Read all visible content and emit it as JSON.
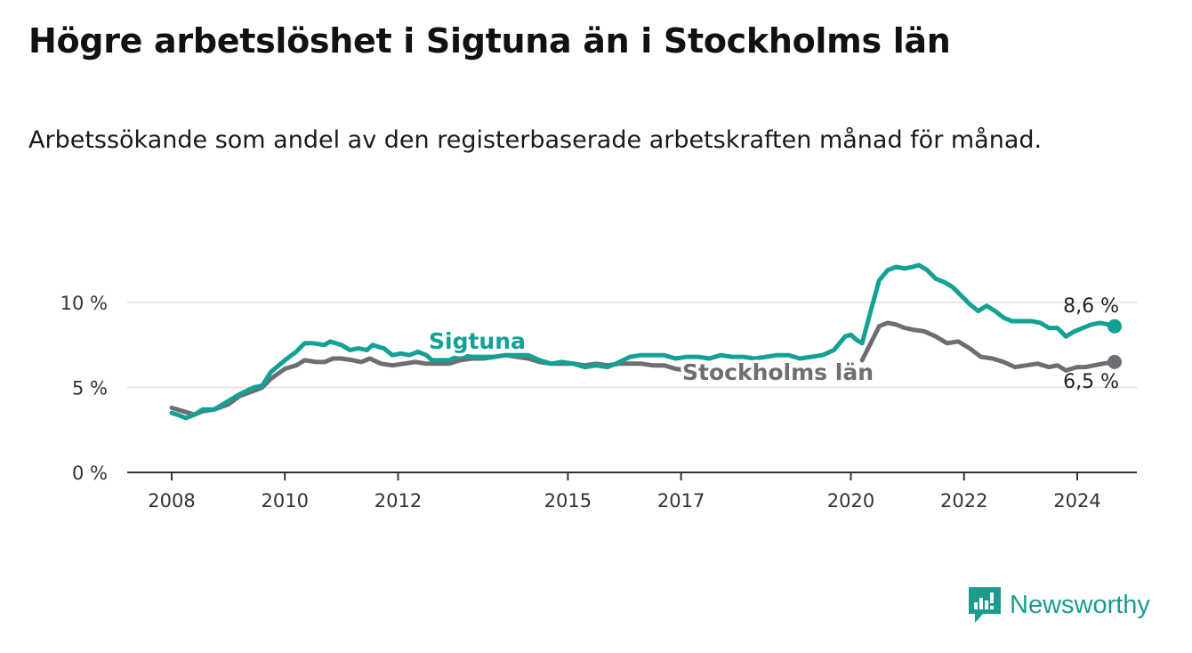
{
  "title": "Högre arbetslöshet i Sigtuna än i Stockholms län",
  "subtitle": "Arbetssökande som andel av den registerbaserade arbetskraften månad för månad.",
  "brand": {
    "name": "Newsworthy"
  },
  "colors": {
    "sigtuna": "#13a196",
    "stockholm": "#6e6d72",
    "axis": "#333333",
    "grid": "#dddddd"
  },
  "chart_data": {
    "type": "line",
    "title": "Högre arbetslöshet i Sigtuna än i Stockholms län",
    "ylabel": "",
    "xlabel": "",
    "ylim": [
      0,
      12.5
    ],
    "xlim": [
      2007.5,
      2025.1
    ],
    "y_ticks": [
      {
        "value": 0,
        "label": "0 %"
      },
      {
        "value": 5,
        "label": "5 %"
      },
      {
        "value": 10,
        "label": "10 %"
      }
    ],
    "x_ticks": [
      {
        "value": 2008.0,
        "label": "2008"
      },
      {
        "value": 2010.0,
        "label": "2010"
      },
      {
        "value": 2012.0,
        "label": "2012"
      },
      {
        "value": 2015.0,
        "label": "2015"
      },
      {
        "value": 2017.0,
        "label": "2017"
      },
      {
        "value": 2020.0,
        "label": "2020"
      },
      {
        "value": 2022.0,
        "label": "2022"
      },
      {
        "value": 2024.0,
        "label": "2024"
      }
    ],
    "series": [
      {
        "name": "Sigtuna",
        "color": "#13a196",
        "end_label": "8,6 %",
        "points": [
          [
            2008.0,
            3.5
          ],
          [
            2008.1,
            3.4
          ],
          [
            2008.25,
            3.2
          ],
          [
            2008.4,
            3.4
          ],
          [
            2008.55,
            3.7
          ],
          [
            2008.75,
            3.7
          ],
          [
            2009.0,
            4.2
          ],
          [
            2009.2,
            4.6
          ],
          [
            2009.45,
            5.0
          ],
          [
            2009.6,
            5.1
          ],
          [
            2009.75,
            5.9
          ],
          [
            2010.0,
            6.6
          ],
          [
            2010.2,
            7.1
          ],
          [
            2010.35,
            7.6
          ],
          [
            2010.5,
            7.6
          ],
          [
            2010.7,
            7.5
          ],
          [
            2010.8,
            7.7
          ],
          [
            2011.0,
            7.5
          ],
          [
            2011.15,
            7.2
          ],
          [
            2011.3,
            7.3
          ],
          [
            2011.45,
            7.2
          ],
          [
            2011.55,
            7.5
          ],
          [
            2011.75,
            7.3
          ],
          [
            2011.9,
            6.9
          ],
          [
            2012.05,
            7.0
          ],
          [
            2012.2,
            6.9
          ],
          [
            2012.35,
            7.1
          ],
          [
            2012.5,
            6.9
          ],
          [
            2012.6,
            6.6
          ],
          [
            2012.75,
            6.6
          ],
          [
            2012.9,
            6.6
          ],
          [
            2013.1,
            6.9
          ],
          [
            2013.3,
            6.8
          ],
          [
            2013.5,
            6.8
          ],
          [
            2013.7,
            6.8
          ],
          [
            2013.9,
            6.9
          ],
          [
            2014.1,
            6.9
          ],
          [
            2014.3,
            6.9
          ],
          [
            2014.5,
            6.6
          ],
          [
            2014.7,
            6.4
          ],
          [
            2014.9,
            6.5
          ],
          [
            2015.1,
            6.4
          ],
          [
            2015.3,
            6.2
          ],
          [
            2015.5,
            6.3
          ],
          [
            2015.7,
            6.2
          ],
          [
            2015.85,
            6.4
          ],
          [
            2016.1,
            6.8
          ],
          [
            2016.3,
            6.9
          ],
          [
            2016.5,
            6.9
          ],
          [
            2016.7,
            6.9
          ],
          [
            2016.9,
            6.7
          ],
          [
            2017.1,
            6.8
          ],
          [
            2017.3,
            6.8
          ],
          [
            2017.5,
            6.7
          ],
          [
            2017.7,
            6.9
          ],
          [
            2017.9,
            6.8
          ],
          [
            2018.1,
            6.8
          ],
          [
            2018.3,
            6.7
          ],
          [
            2018.5,
            6.8
          ],
          [
            2018.7,
            6.9
          ],
          [
            2018.9,
            6.9
          ],
          [
            2019.1,
            6.7
          ],
          [
            2019.3,
            6.8
          ],
          [
            2019.5,
            6.9
          ],
          [
            2019.7,
            7.2
          ],
          [
            2019.8,
            7.6
          ],
          [
            2019.9,
            8.0
          ],
          [
            2020.0,
            8.1
          ],
          [
            2020.1,
            7.8
          ],
          [
            2020.2,
            7.6
          ],
          [
            2020.35,
            9.5
          ],
          [
            2020.5,
            11.3
          ],
          [
            2020.65,
            11.9
          ],
          [
            2020.8,
            12.1
          ],
          [
            2020.95,
            12.0
          ],
          [
            2021.1,
            12.1
          ],
          [
            2021.2,
            12.2
          ],
          [
            2021.35,
            11.9
          ],
          [
            2021.5,
            11.4
          ],
          [
            2021.65,
            11.2
          ],
          [
            2021.8,
            10.9
          ],
          [
            2021.95,
            10.4
          ],
          [
            2022.1,
            9.9
          ],
          [
            2022.25,
            9.5
          ],
          [
            2022.4,
            9.8
          ],
          [
            2022.55,
            9.5
          ],
          [
            2022.7,
            9.1
          ],
          [
            2022.85,
            8.9
          ],
          [
            2023.0,
            8.9
          ],
          [
            2023.2,
            8.9
          ],
          [
            2023.35,
            8.8
          ],
          [
            2023.5,
            8.5
          ],
          [
            2023.65,
            8.5
          ],
          [
            2023.8,
            8.0
          ],
          [
            2023.95,
            8.3
          ],
          [
            2024.1,
            8.5
          ],
          [
            2024.25,
            8.7
          ],
          [
            2024.4,
            8.8
          ],
          [
            2024.55,
            8.7
          ],
          [
            2024.66,
            8.6
          ]
        ]
      },
      {
        "name": "Stockholms län",
        "color": "#6e6d72",
        "end_label": "6,5 %",
        "points": [
          [
            2008.0,
            3.8
          ],
          [
            2008.2,
            3.6
          ],
          [
            2008.4,
            3.4
          ],
          [
            2008.55,
            3.6
          ],
          [
            2008.75,
            3.7
          ],
          [
            2009.0,
            4.0
          ],
          [
            2009.2,
            4.5
          ],
          [
            2009.45,
            4.8
          ],
          [
            2009.6,
            5.0
          ],
          [
            2009.75,
            5.5
          ],
          [
            2010.0,
            6.1
          ],
          [
            2010.2,
            6.3
          ],
          [
            2010.35,
            6.6
          ],
          [
            2010.55,
            6.5
          ],
          [
            2010.7,
            6.5
          ],
          [
            2010.85,
            6.7
          ],
          [
            2011.0,
            6.7
          ],
          [
            2011.2,
            6.6
          ],
          [
            2011.35,
            6.5
          ],
          [
            2011.5,
            6.7
          ],
          [
            2011.7,
            6.4
          ],
          [
            2011.9,
            6.3
          ],
          [
            2012.1,
            6.4
          ],
          [
            2012.3,
            6.5
          ],
          [
            2012.5,
            6.4
          ],
          [
            2012.7,
            6.4
          ],
          [
            2012.9,
            6.4
          ],
          [
            2013.1,
            6.6
          ],
          [
            2013.3,
            6.7
          ],
          [
            2013.5,
            6.7
          ],
          [
            2013.7,
            6.8
          ],
          [
            2013.9,
            6.9
          ],
          [
            2014.1,
            6.8
          ],
          [
            2014.3,
            6.7
          ],
          [
            2014.5,
            6.5
          ],
          [
            2014.7,
            6.4
          ],
          [
            2014.9,
            6.4
          ],
          [
            2015.1,
            6.4
          ],
          [
            2015.3,
            6.3
          ],
          [
            2015.5,
            6.4
          ],
          [
            2015.7,
            6.3
          ],
          [
            2015.9,
            6.4
          ],
          [
            2016.1,
            6.4
          ],
          [
            2016.3,
            6.4
          ],
          [
            2016.5,
            6.3
          ],
          [
            2016.7,
            6.3
          ],
          [
            2016.9,
            6.1
          ],
          [
            2017.1,
            6.0
          ]
        ]
      },
      {
        "name": "Stockholms län (2020–2024)",
        "color": "#6e6d72",
        "points": [
          [
            2020.2,
            6.6
          ],
          [
            2020.35,
            7.6
          ],
          [
            2020.5,
            8.6
          ],
          [
            2020.65,
            8.8
          ],
          [
            2020.8,
            8.7
          ],
          [
            2020.95,
            8.5
          ],
          [
            2021.1,
            8.4
          ],
          [
            2021.3,
            8.3
          ],
          [
            2021.5,
            8.0
          ],
          [
            2021.7,
            7.6
          ],
          [
            2021.9,
            7.7
          ],
          [
            2022.1,
            7.3
          ],
          [
            2022.3,
            6.8
          ],
          [
            2022.5,
            6.7
          ],
          [
            2022.7,
            6.5
          ],
          [
            2022.9,
            6.2
          ],
          [
            2023.1,
            6.3
          ],
          [
            2023.3,
            6.4
          ],
          [
            2023.5,
            6.2
          ],
          [
            2023.65,
            6.3
          ],
          [
            2023.8,
            6.0
          ],
          [
            2024.0,
            6.2
          ],
          [
            2024.15,
            6.2
          ],
          [
            2024.3,
            6.3
          ],
          [
            2024.45,
            6.4
          ],
          [
            2024.66,
            6.5
          ]
        ]
      }
    ],
    "annotations": [
      {
        "text": "Sigtuna",
        "series": "Sigtuna"
      },
      {
        "text": "Stockholms län",
        "series": "Stockholms län"
      }
    ]
  }
}
